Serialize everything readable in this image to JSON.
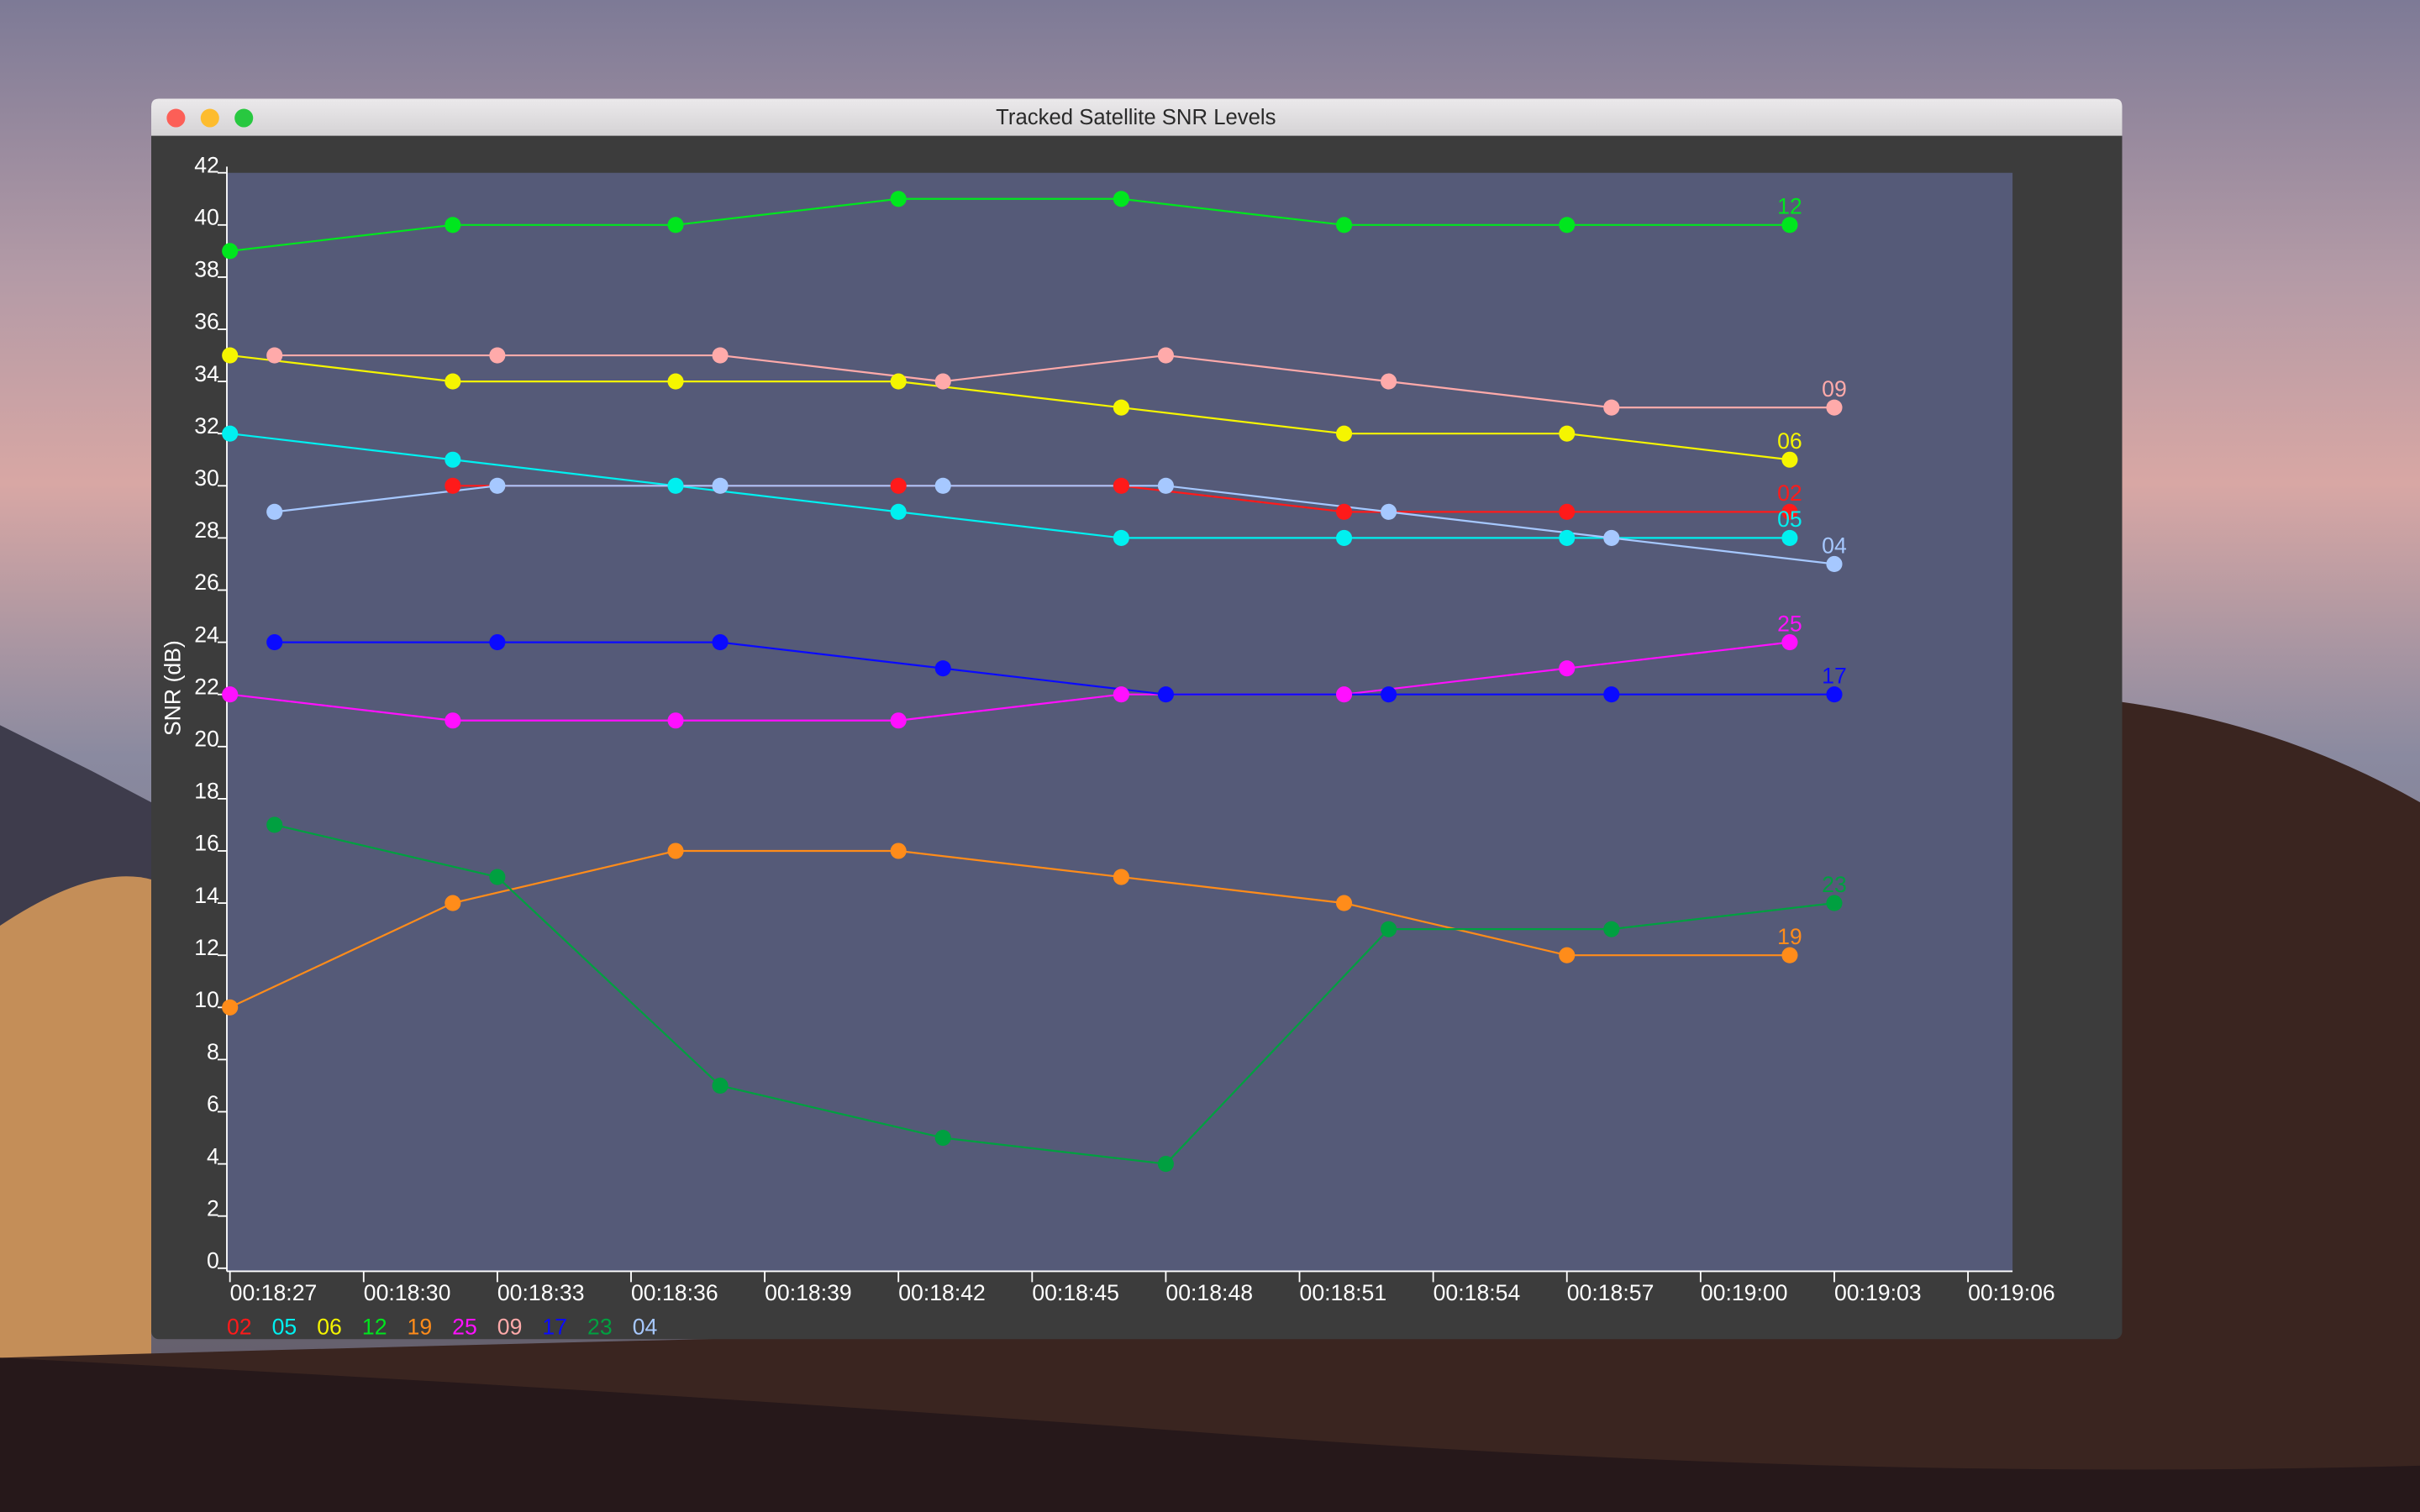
{
  "window": {
    "title": "Tracked Satellite SNR Levels"
  },
  "chart_data": {
    "type": "line",
    "y_label": "SNR (dB)",
    "xlim": [
      "00:18:27",
      "00:19:07"
    ],
    "xticks": [
      "00:18:27",
      "00:18:30",
      "00:18:33",
      "00:18:36",
      "00:18:39",
      "00:18:42",
      "00:18:45",
      "00:18:48",
      "00:18:51",
      "00:18:54",
      "00:18:57",
      "00:19:00",
      "00:19:03",
      "00:19:06"
    ],
    "ylim": [
      0,
      42
    ],
    "yticks": [
      0,
      2,
      4,
      6,
      8,
      10,
      12,
      14,
      16,
      18,
      20,
      22,
      24,
      26,
      28,
      30,
      32,
      34,
      36,
      38,
      40,
      42
    ],
    "legend": "bottom-left",
    "series": [
      {
        "name": "02",
        "color": "#ff1a1a",
        "x": [
          "00:18:32",
          "00:18:42",
          "00:18:47",
          "00:18:52",
          "00:18:57",
          "00:19:02"
        ],
        "values": [
          30,
          30,
          30,
          29,
          29,
          29
        ]
      },
      {
        "name": "05",
        "color": "#00f0f0",
        "x": [
          "00:18:27",
          "00:18:32",
          "00:18:37",
          "00:18:42",
          "00:18:47",
          "00:18:52",
          "00:18:57",
          "00:19:02"
        ],
        "values": [
          32,
          31,
          30,
          29,
          28,
          28,
          28,
          28
        ]
      },
      {
        "name": "06",
        "color": "#f5f500",
        "x": [
          "00:18:27",
          "00:18:32",
          "00:18:37",
          "00:18:42",
          "00:18:47",
          "00:18:52",
          "00:18:57",
          "00:19:02"
        ],
        "values": [
          35,
          34,
          34,
          34,
          33,
          32,
          32,
          31
        ]
      },
      {
        "name": "12",
        "color": "#00e61e",
        "x": [
          "00:18:27",
          "00:18:32",
          "00:18:37",
          "00:18:42",
          "00:18:47",
          "00:18:52",
          "00:18:57",
          "00:19:02"
        ],
        "values": [
          39,
          40,
          40,
          41,
          41,
          40,
          40,
          40
        ]
      },
      {
        "name": "19",
        "color": "#ff8c1a",
        "x": [
          "00:18:27",
          "00:18:32",
          "00:18:37",
          "00:18:42",
          "00:18:47",
          "00:18:52",
          "00:18:57",
          "00:19:02"
        ],
        "values": [
          10,
          14,
          16,
          16,
          15,
          14,
          12,
          12
        ]
      },
      {
        "name": "25",
        "color": "#ff10ff",
        "x": [
          "00:18:27",
          "00:18:32",
          "00:18:37",
          "00:18:42",
          "00:18:47",
          "00:18:52",
          "00:18:57",
          "00:19:02"
        ],
        "values": [
          22,
          21,
          21,
          21,
          22,
          22,
          23,
          24
        ]
      },
      {
        "name": "09",
        "color": "#ffaaaa",
        "x": [
          "00:18:28",
          "00:18:33",
          "00:18:38",
          "00:18:43",
          "00:18:48",
          "00:18:53",
          "00:18:58",
          "00:19:03"
        ],
        "values": [
          35,
          35,
          35,
          34,
          35,
          34,
          33,
          33
        ]
      },
      {
        "name": "17",
        "color": "#0a0aff",
        "x": [
          "00:18:28",
          "00:18:33",
          "00:18:38",
          "00:18:43",
          "00:18:48",
          "00:18:53",
          "00:18:58",
          "00:19:03"
        ],
        "values": [
          24,
          24,
          24,
          23,
          22,
          22,
          22,
          22
        ]
      },
      {
        "name": "23",
        "color": "#00a040",
        "x": [
          "00:18:28",
          "00:18:33",
          "00:18:38",
          "00:18:43",
          "00:18:48",
          "00:18:53",
          "00:18:58",
          "00:19:03"
        ],
        "values": [
          17,
          15,
          7,
          5,
          4,
          13,
          13,
          14
        ]
      },
      {
        "name": "04",
        "color": "#a6c8ff",
        "x": [
          "00:18:28",
          "00:18:33",
          "00:18:38",
          "00:18:43",
          "00:18:48",
          "00:18:53",
          "00:18:58",
          "00:19:03"
        ],
        "values": [
          29,
          30,
          30,
          30,
          30,
          29,
          28,
          27
        ]
      }
    ]
  }
}
